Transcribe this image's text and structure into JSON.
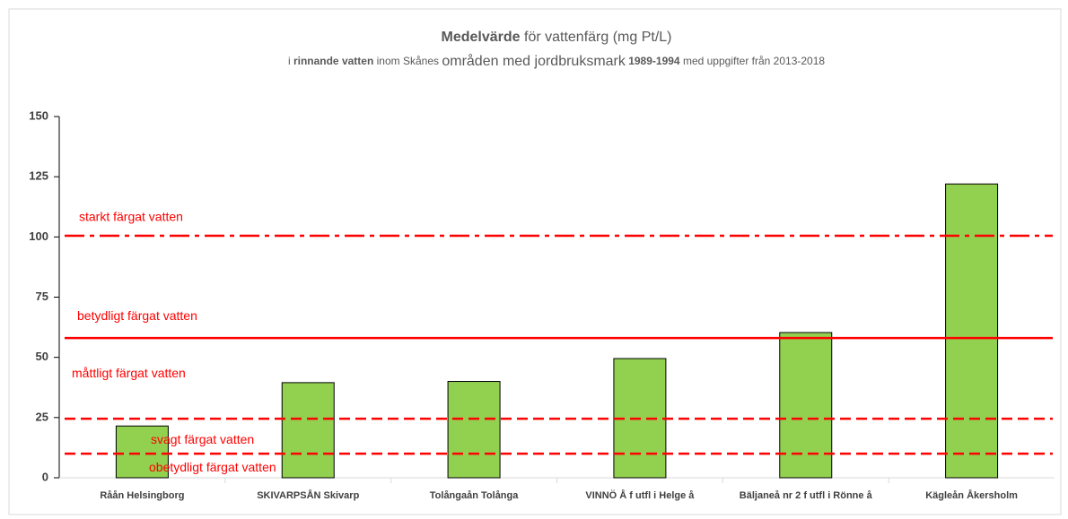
{
  "chart_data": {
    "type": "bar",
    "title": [
      {
        "text": "Medelvärde",
        "bold": true
      },
      {
        "text": " för vattenfärg (mg Pt/L)",
        "bold": false
      }
    ],
    "subtitle": [
      {
        "text": "i ",
        "bold": false,
        "big": false
      },
      {
        "text": "rinnande vatten",
        "bold": true,
        "big": false
      },
      {
        "text": " inom Skånes ",
        "bold": false,
        "big": false
      },
      {
        "text": "områden med jordbruksmark",
        "bold": false,
        "big": true
      },
      {
        "text": " 1989-1994",
        "bold": true,
        "big": false
      },
      {
        "text": " med uppgifter från 2013-2018",
        "bold": false,
        "big": false
      }
    ],
    "categories": [
      "Råån Helsingborg",
      "SKIVARPSÅN Skivarp",
      "Tolångaån Tolånga",
      "VINNÖ Å f utfl i Helge å",
      "Bäljaneå nr 2 f utfl i Rönne å",
      "Kägleån Åkersholm"
    ],
    "values": [
      21.5,
      39.5,
      40,
      49.5,
      60.3,
      122
    ],
    "color": "#92d050",
    "ylim": [
      0,
      150
    ],
    "yticks": [
      0,
      25,
      50,
      75,
      100,
      125,
      150
    ],
    "grid": false,
    "reference_lines": [
      {
        "label": "starkt färgat vatten",
        "value": 100.5,
        "style": "dashdot",
        "color": "#ff0000"
      },
      {
        "label": "betydligt färgat vatten",
        "value": 58,
        "style": "solid",
        "color": "#ff0000"
      },
      {
        "label": "måttligt färgat vatten",
        "value": 24.5,
        "style": "dashed",
        "color": "#ff0000"
      },
      {
        "label": "svagt färgat vatten",
        "value": 10,
        "style": "dashed",
        "color": "#ff0000"
      },
      {
        "label": "obetydligt färgat vatten",
        "value": null,
        "style": null,
        "color": "#ff0000"
      }
    ]
  }
}
